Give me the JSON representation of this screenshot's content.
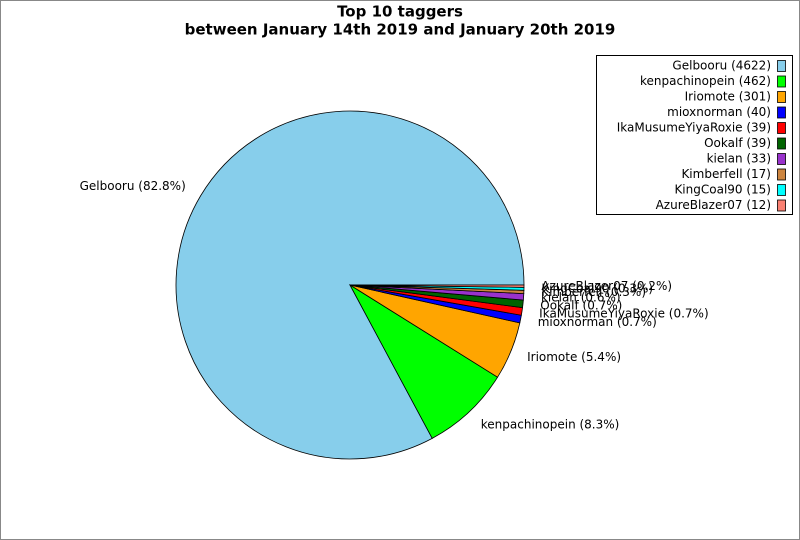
{
  "chart_data": {
    "type": "pie",
    "title": "Top 10 taggers",
    "subtitle": "between January 14th 2019 and January 20th 2019",
    "categories": [
      "Gelbooru",
      "kenpachinopein",
      "Iriomote",
      "mioxnorman",
      "IkaMusumeYiyaRoxie",
      "Ookalf",
      "kielan",
      "Kimberfell",
      "KingCoal90",
      "AzureBlazer07"
    ],
    "values": [
      4622,
      462,
      301,
      40,
      39,
      39,
      33,
      17,
      15,
      12
    ],
    "value_labels": [
      "Gelbooru (82.8%)",
      "kenpachinopein (8.3%)",
      "Iriomote (5.4%)",
      "mioxnorman (0.7%)",
      "IkaMusumeYiyaRoxie (0.7%)",
      "Ookalf (0.7%)",
      "kielan (0.6%)",
      "Kimberfell (0.3%)",
      "KingCoal90 (0.3%)",
      "AzureBlazer07 (0.2%)"
    ],
    "legend_labels": [
      "Gelbooru (4622)",
      "kenpachinopein (462)",
      "Iriomote (301)",
      "mioxnorman (40)",
      "IkaMusumeYiyaRoxie (39)",
      "Ookalf (39)",
      "kielan (33)",
      "Kimberfell (17)",
      "KingCoal90 (15)",
      "AzureBlazer07 (12)"
    ],
    "colors": [
      "#87ceeb",
      "#00ff00",
      "#ffa500",
      "#0000ff",
      "#ff0000",
      "#006400",
      "#9932cc",
      "#cd853f",
      "#00ffff",
      "#fa8072"
    ],
    "legend": "upper right"
  }
}
